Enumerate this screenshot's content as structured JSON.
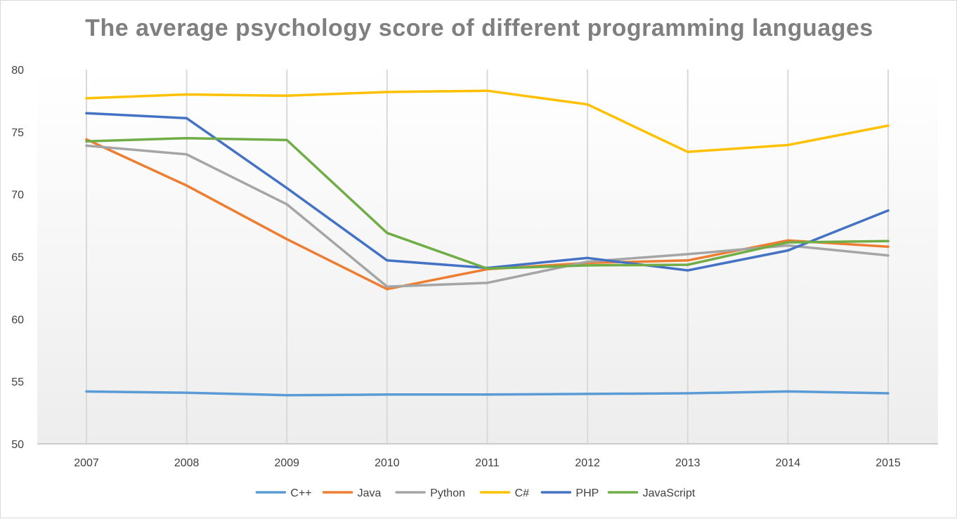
{
  "chart_data": {
    "type": "line",
    "title": "The average psychology score of different programming languages",
    "xlabel": "",
    "ylabel": "",
    "x": [
      "2007",
      "2008",
      "2009",
      "2010",
      "2011",
      "2012",
      "2013",
      "2014",
      "2015"
    ],
    "ylim": [
      50,
      80
    ],
    "yticks": [
      "50",
      "55",
      "60",
      "65",
      "70",
      "75",
      "80"
    ],
    "grid": "vertical",
    "legend": "bottom",
    "series": [
      {
        "name": "C++",
        "color": "#5b9bd5",
        "values": [
          54.2,
          54.1,
          53.9,
          53.95,
          53.95,
          54.0,
          54.05,
          54.2,
          54.05
        ]
      },
      {
        "name": "Java",
        "color": "#ed7d31",
        "values": [
          74.4,
          70.7,
          66.4,
          62.4,
          64.0,
          64.5,
          64.7,
          66.3,
          65.8
        ]
      },
      {
        "name": "Python",
        "color": "#a5a5a5",
        "values": [
          73.9,
          73.2,
          69.2,
          62.6,
          62.9,
          64.6,
          65.2,
          65.9,
          65.1
        ]
      },
      {
        "name": "C#",
        "color": "#ffc000",
        "values": [
          77.7,
          78.0,
          77.9,
          78.2,
          78.3,
          77.2,
          73.4,
          73.95,
          75.5
        ]
      },
      {
        "name": "PHP",
        "color": "#4472c4",
        "values": [
          76.5,
          76.1,
          70.5,
          64.7,
          64.1,
          64.9,
          63.9,
          65.5,
          68.7
        ]
      },
      {
        "name": "JavaScript",
        "color": "#70ad47",
        "values": [
          74.25,
          74.5,
          74.35,
          66.9,
          64.05,
          64.3,
          64.35,
          66.15,
          66.25
        ]
      }
    ]
  }
}
